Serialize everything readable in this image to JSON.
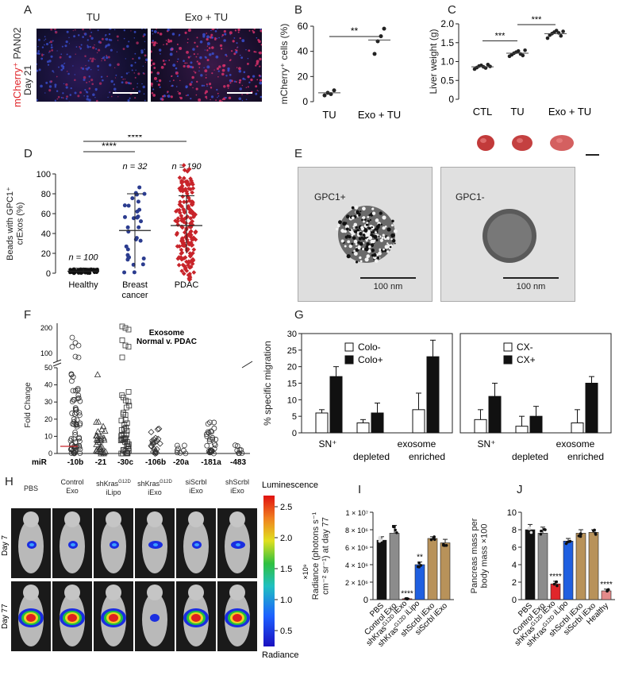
{
  "panel_letters": {
    "A": "A",
    "B": "B",
    "C": "C",
    "D": "D",
    "E": "E",
    "F": "F",
    "G": "G",
    "H": "H",
    "I": "I",
    "J": "J"
  },
  "panelA": {
    "ylabel_red": "mCherry⁺",
    "ylabel_rest": " PAN02",
    "day": "Day 21",
    "columns": [
      "TU",
      "Exo + TU"
    ]
  },
  "panelE": {
    "left_label": "GPC1+",
    "right_label": "GPC1-",
    "scale": "100 nm"
  },
  "panelH": {
    "columns": [
      "PBS",
      "Control\nExo",
      "shKras^G12D\niLipo",
      "shKras^G12D\niExo",
      "siScrbl\niExo",
      "shScrbl\niExo"
    ],
    "rows": [
      "Day 7",
      "Day 77"
    ],
    "legend_title": "Luminescence",
    "legend_bottom": "Radiance",
    "legend_unit": "×10⁹",
    "legend_ticks": [
      "2.5",
      "2.0",
      "1.5",
      "1.0",
      "0.5"
    ]
  },
  "colors": {
    "red": "#e0262b",
    "black": "#111111",
    "grey": "#8c8c8c",
    "blue": "#1f5fe0",
    "tan": "#b8925a",
    "pink": "#e38a8a"
  },
  "chart_data": [
    {
      "id": "B",
      "type": "scatter",
      "categories": [
        "TU",
        "Exo + TU"
      ],
      "values": [
        [
          5,
          7,
          6,
          9
        ],
        [
          38,
          48,
          52,
          58
        ]
      ],
      "mean": [
        7,
        49
      ],
      "ylabel": "mCherry⁺ cells (%)",
      "ylim": [
        0,
        60
      ],
      "yticks": [
        "0",
        "20",
        "40",
        "60"
      ],
      "sig": "**"
    },
    {
      "id": "C",
      "type": "scatter",
      "categories": [
        "CTL",
        "TU",
        "Exo + TU"
      ],
      "values": [
        [
          0.8,
          0.84,
          0.88,
          0.9,
          0.86,
          0.83,
          0.92,
          0.87
        ],
        [
          1.14,
          1.18,
          1.22,
          1.25,
          1.28,
          1.2,
          1.16,
          1.3
        ],
        [
          1.62,
          1.7,
          1.74,
          1.78,
          1.82,
          1.76,
          1.68,
          1.8
        ]
      ],
      "mean": [
        0.86,
        1.22,
        1.74
      ],
      "ylabel": "Liver weight (g)",
      "ylim": [
        0,
        2.0
      ],
      "yticks": [
        "0",
        "0.5",
        "1.0",
        "1.5",
        "2.0"
      ],
      "sig": [
        "***",
        "***"
      ]
    },
    {
      "id": "D",
      "type": "scatter",
      "categories": [
        "Healthy",
        "Breast\ncancer",
        "PDAC"
      ],
      "counts": [
        "n = 100",
        "n = 32",
        "n = 190"
      ],
      "mean": [
        2,
        43,
        48
      ],
      "sd": [
        [
          0,
          5
        ],
        [
          5,
          80
        ],
        [
          20,
          78
        ]
      ],
      "ylabel": "Beads with GPC1⁺\ncrExos (%)",
      "ylim": [
        0,
        100
      ],
      "yticks": [
        "0",
        "20",
        "40",
        "60",
        "80",
        "100"
      ],
      "sig": [
        "****",
        "****"
      ]
    },
    {
      "id": "F",
      "type": "scatter",
      "title": "Exosome\nNormal v. PDAC",
      "categories": [
        "-10b",
        "-21",
        "-30c",
        "-106b",
        "-20a",
        "-181a",
        "-483"
      ],
      "xprefix": "miR",
      "ylabel": "Fold Change",
      "yticks": [
        "0",
        "10",
        "20",
        "30",
        "40",
        "50",
        "100",
        "200"
      ],
      "outliers": [
        [
          130,
          110,
          100,
          95,
          58,
          55
        ],
        [
          46
        ],
        [
          200,
          180,
          160,
          120,
          100,
          95,
          55
        ],
        [],
        [],
        [],
        []
      ],
      "spread": [
        [
          0,
          48
        ],
        [
          0,
          22
        ],
        [
          0,
          36
        ],
        [
          0,
          16
        ],
        [
          0,
          5
        ],
        [
          0,
          22
        ],
        [
          0,
          6
        ]
      ]
    },
    {
      "id": "G1",
      "type": "bar",
      "categories": [
        "SN⁺",
        "exosome\ndepleted",
        "exosome\nenriched"
      ],
      "series": [
        {
          "name": "Colo-",
          "values": [
            6,
            3,
            7
          ],
          "err": [
            1,
            1,
            5
          ]
        },
        {
          "name": "Colo+",
          "values": [
            17,
            6,
            23
          ],
          "err": [
            3,
            3,
            5
          ]
        }
      ],
      "ylabel": "% specific migration",
      "ylim": [
        0,
        30
      ],
      "yticks": [
        "0",
        "5",
        "10",
        "15",
        "20",
        "25",
        "30"
      ]
    },
    {
      "id": "G2",
      "type": "bar",
      "categories": [
        "SN⁺",
        "exosome\ndepleted",
        "exosome\nenriched"
      ],
      "series": [
        {
          "name": "CX-",
          "values": [
            4,
            2,
            3
          ],
          "err": [
            3,
            3,
            4
          ]
        },
        {
          "name": "CX+",
          "values": [
            11,
            5,
            15
          ],
          "err": [
            4,
            3,
            2
          ]
        }
      ],
      "ylim": [
        0,
        30
      ]
    },
    {
      "id": "I",
      "type": "bar",
      "categories": [
        "PBS",
        "Control Exo",
        "shKras^G12D iExo",
        "shKras^G12D iLipo",
        "shScrbl iExo",
        "siScrbl iExo"
      ],
      "values": [
        6.8,
        7.6,
        0.1,
        4.0,
        7.0,
        6.5
      ],
      "err": [
        0.4,
        0.9,
        0.05,
        0.3,
        0.2,
        0.4
      ],
      "colors": [
        "black",
        "grey",
        "red",
        "blue",
        "tan",
        "tan"
      ],
      "sig": [
        "",
        "",
        "****",
        "**",
        "",
        ""
      ],
      "ylabel": "Radiance (photons s⁻¹\ncm⁻² sr⁻¹) at day 77",
      "ylim": [
        0,
        10
      ],
      "yticks": [
        "0",
        "2 × 10⁶",
        "4 × 10⁶",
        "6 × 10⁶",
        "8 × 10⁶",
        "1 × 10⁷"
      ]
    },
    {
      "id": "J",
      "type": "bar",
      "categories": [
        "PBS",
        "Control Exo",
        "shKras^G12D iExo",
        "shKras^G12D iLipo",
        "shScrbl iExo",
        "siScrbl iExo",
        "Healthy"
      ],
      "values": [
        8.0,
        7.6,
        1.8,
        6.7,
        7.6,
        7.7,
        1.0
      ],
      "err": [
        0.6,
        0.7,
        0.3,
        0.3,
        0.4,
        0.3,
        0.2
      ],
      "colors": [
        "black",
        "grey",
        "red",
        "blue",
        "tan",
        "tan",
        "pink"
      ],
      "sig": [
        "",
        "",
        "****",
        "",
        "",
        "",
        "****"
      ],
      "ylabel": "Pancreas mass per\nbody mass ×100",
      "ylim": [
        0,
        10
      ],
      "yticks": [
        "0",
        "2",
        "4",
        "6",
        "8",
        "10"
      ]
    }
  ]
}
